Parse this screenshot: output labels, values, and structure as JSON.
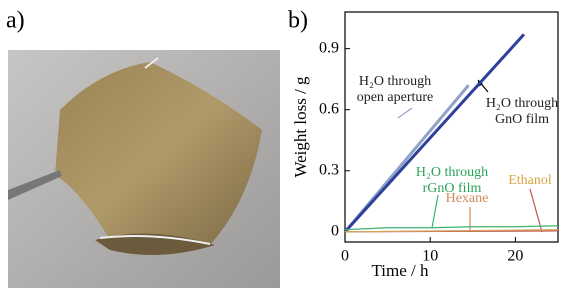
{
  "panel_labels": [
    "a)",
    "b)"
  ],
  "chart_data": {
    "type": "line",
    "xlabel": "Time / h",
    "ylabel": "Weight loss / g",
    "xlim": [
      0,
      25
    ],
    "xticks": [
      0,
      10,
      20
    ],
    "ylim": [
      -0.05,
      1.08
    ],
    "yticks": [
      0,
      0.3,
      0.6,
      0.9
    ],
    "series": [
      {
        "color": "#8fa3c8",
        "x": [
          0,
          14.5
        ],
        "values": [
          0,
          0.72
        ]
      },
      {
        "color": "#2f3f9c",
        "x": [
          0,
          21
        ],
        "values": [
          0,
          0.97
        ]
      },
      {
        "color": "#3cb371",
        "x": [
          0,
          5,
          10,
          15,
          20,
          25
        ],
        "values": [
          0.01,
          0.02,
          0.02,
          0.025,
          0.025,
          0.03
        ]
      },
      {
        "color": "#c0504d",
        "x": [
          0,
          25
        ],
        "values": [
          0,
          0.005
        ]
      },
      {
        "color": "#d4a45a",
        "x": [
          0,
          25
        ],
        "values": [
          0,
          0.01
        ]
      }
    ],
    "annotations": [
      {
        "lines": [
          "H₂O through",
          "open aperture"
        ],
        "color": "#222222"
      },
      {
        "lines": [
          "H₂O through",
          "GnO film"
        ],
        "color": "#222222"
      },
      {
        "lines": [
          "H₂O through",
          "rGnO film"
        ],
        "color": "#2aa35a"
      },
      {
        "lines": [
          "Hexane"
        ],
        "color": "#d08a5a"
      },
      {
        "lines": [
          "Ethanol"
        ],
        "color": "#d9a441"
      }
    ]
  }
}
